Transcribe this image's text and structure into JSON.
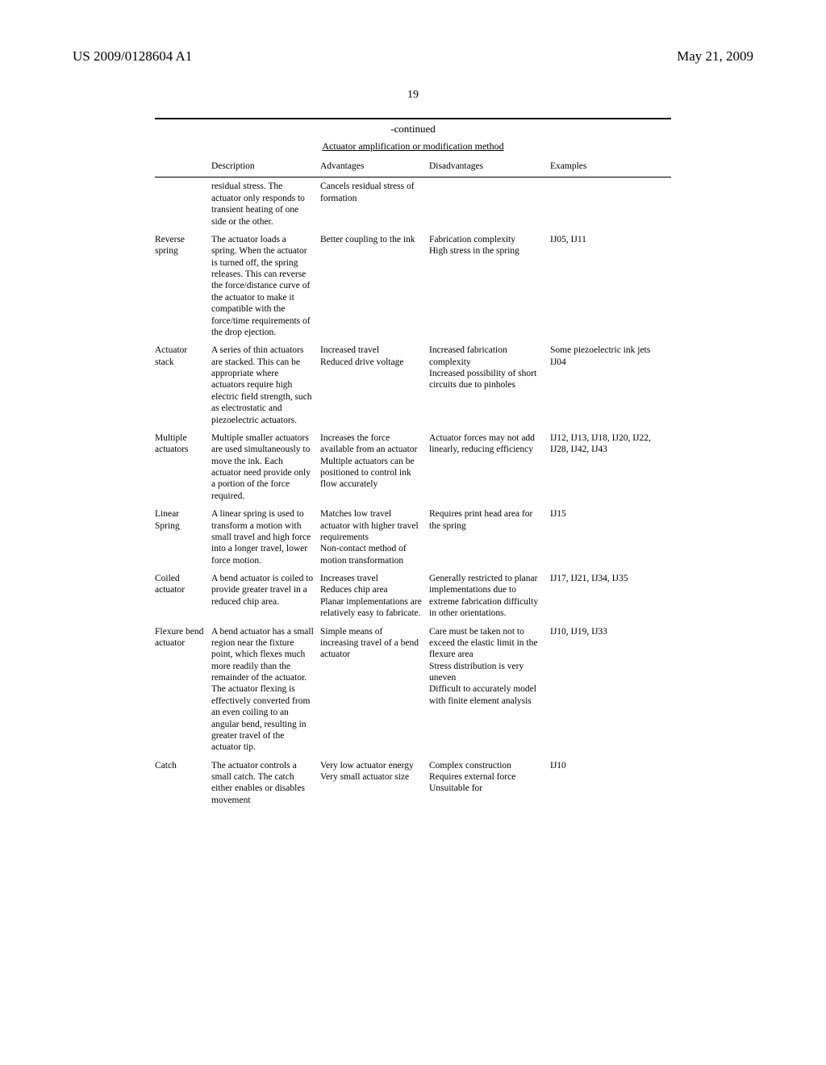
{
  "header": {
    "left": "US 2009/0128604 A1",
    "right": "May 21, 2009"
  },
  "page_number": "19",
  "table": {
    "continued_label": "-continued",
    "title": "Actuator amplification or modification method",
    "columns": [
      "",
      "Description",
      "Advantages",
      "Disadvantages",
      "Examples"
    ],
    "rows": [
      {
        "name": "",
        "description": "residual stress. The actuator only responds to transient heating of one side or the other.",
        "advantages": "Cancels residual stress of formation",
        "disadvantages": "",
        "examples": ""
      },
      {
        "name": "Reverse spring",
        "description": "The actuator loads a spring. When the actuator is turned off, the spring releases. This can reverse the force/distance curve of the actuator to make it compatible with the force/time requirements of the drop ejection.",
        "advantages": "Better coupling to the ink",
        "disadvantages": "Fabrication complexity\nHigh stress in the spring",
        "examples": "IJ05, IJ11"
      },
      {
        "name": "Actuator stack",
        "description": "A series of thin actuators are stacked. This can be appropriate where actuators require high electric field strength, such as electrostatic and piezoelectric actuators.",
        "advantages": "Increased travel\nReduced drive voltage",
        "disadvantages": "Increased fabrication complexity\nIncreased possibility of short circuits due to pinholes",
        "examples": "Some piezoelectric ink jets\nIJ04"
      },
      {
        "name": "Multiple actuators",
        "description": "Multiple smaller actuators are used simultaneously to move the ink. Each actuator need provide only a portion of the force required.",
        "advantages": "Increases the force available from an actuator\nMultiple actuators can be positioned to control ink flow accurately",
        "disadvantages": "Actuator forces may not add linearly, reducing efficiency",
        "examples": "IJ12, IJ13, IJ18, IJ20, IJ22, IJ28, IJ42, IJ43"
      },
      {
        "name": "Linear Spring",
        "description": "A linear spring is used to transform a motion with small travel and high force into a longer travel, lower force motion.",
        "advantages": "Matches low travel actuator with higher travel requirements\nNon-contact method of motion transformation",
        "disadvantages": "Requires print head area for the spring",
        "examples": "IJ15"
      },
      {
        "name": "Coiled actuator",
        "description": "A bend actuator is coiled to provide greater travel in a reduced chip area.",
        "advantages": "Increases travel\nReduces chip area\nPlanar implementations are relatively easy to fabricate.",
        "disadvantages": "Generally restricted to planar implementations due to extreme fabrication difficulty in other orientations.",
        "examples": "IJ17, IJ21, IJ34, IJ35"
      },
      {
        "name": "Flexure bend actuator",
        "description": "A bend actuator has a small region near the fixture point, which flexes much more readily than the remainder of the actuator. The actuator flexing is effectively converted from an even coiling to an angular bend, resulting in greater travel of the actuator tip.",
        "advantages": "Simple means of increasing travel of a bend actuator",
        "disadvantages": "Care must be taken not to exceed the elastic limit in the flexure area\nStress distribution is very uneven\nDifficult to accurately model with finite element analysis",
        "examples": "IJ10, IJ19, IJ33"
      },
      {
        "name": "Catch",
        "description": "The actuator controls a small catch. The catch either enables or disables movement",
        "advantages": "Very low actuator energy\nVery small actuator size",
        "disadvantages": "Complex construction\nRequires external force\nUnsuitable for",
        "examples": "IJ10"
      }
    ]
  }
}
